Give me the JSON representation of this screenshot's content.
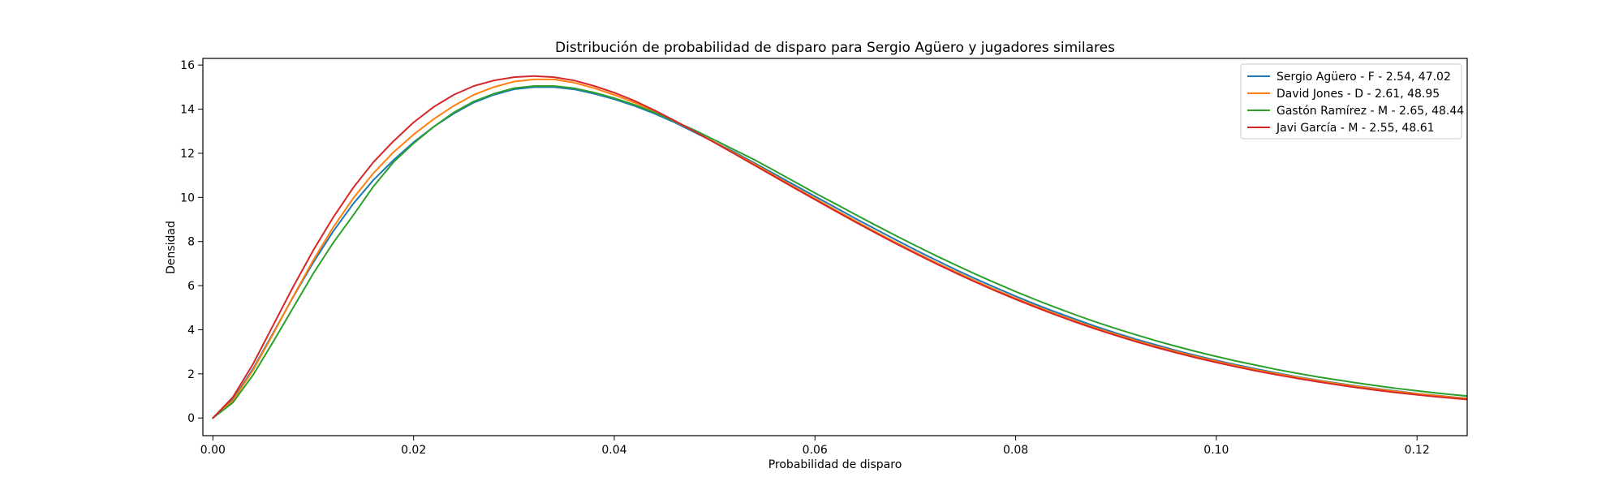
{
  "chart_data": {
    "type": "line",
    "title": "Distribución de probabilidad de disparo para Sergio Agüero y jugadores similares",
    "xlabel": "Probabilidad de disparo",
    "ylabel": "Densidad",
    "xlim": [
      -0.001,
      0.125
    ],
    "ylim": [
      -0.8,
      16.3
    ],
    "xticks": [
      0.0,
      0.02,
      0.04,
      0.06,
      0.08,
      0.1,
      0.12
    ],
    "xtick_labels": [
      "0.00",
      "0.02",
      "0.04",
      "0.06",
      "0.08",
      "0.10",
      "0.12"
    ],
    "yticks": [
      0,
      2,
      4,
      6,
      8,
      10,
      12,
      14,
      16
    ],
    "ytick_labels": [
      "0",
      "2",
      "4",
      "6",
      "8",
      "10",
      "12",
      "14",
      "16"
    ],
    "grid": false,
    "legend_position": "top-right",
    "series": [
      {
        "name": "Sergio Agüero - F - 2.54, 47.02",
        "color": "#1f77b4",
        "alpha": 2.54,
        "beta": 47.02,
        "x": [
          0,
          0.002,
          0.004,
          0.006,
          0.008,
          0.01,
          0.012,
          0.014,
          0.016,
          0.018,
          0.02,
          0.022,
          0.024,
          0.026,
          0.028,
          0.03,
          0.032,
          0.034,
          0.036,
          0.038,
          0.04,
          0.042,
          0.044,
          0.046,
          0.048,
          0.05,
          0.052,
          0.054,
          0.056,
          0.058,
          0.06,
          0.062,
          0.064,
          0.066,
          0.068,
          0.07,
          0.072,
          0.074,
          0.076,
          0.078,
          0.08,
          0.082,
          0.084,
          0.086,
          0.088,
          0.09,
          0.092,
          0.094,
          0.096,
          0.098,
          0.1,
          0.102,
          0.104,
          0.106,
          0.108,
          0.11,
          0.112,
          0.114,
          0.116,
          0.118,
          0.12,
          0.122,
          0.124,
          0.126
        ],
        "y": [
          0,
          0.84,
          2.23,
          3.85,
          5.49,
          7.05,
          8.47,
          9.72,
          10.79,
          11.69,
          12.5,
          13.2,
          13.8,
          14.3,
          14.65,
          14.9,
          15.0,
          15.0,
          14.9,
          14.7,
          14.45,
          14.15,
          13.8,
          13.4,
          12.95,
          12.5,
          12.05,
          11.55,
          11.05,
          10.55,
          10.05,
          9.55,
          9.05,
          8.57,
          8.09,
          7.62,
          7.17,
          6.73,
          6.31,
          5.91,
          5.52,
          5.15,
          4.8,
          4.47,
          4.15,
          3.85,
          3.57,
          3.31,
          3.06,
          2.83,
          2.61,
          2.41,
          2.22,
          2.04,
          1.87,
          1.72,
          1.58,
          1.45,
          1.33,
          1.22,
          1.11,
          1.02,
          0.93,
          0.85
        ]
      },
      {
        "name": "David Jones - D - 2.61, 48.95",
        "color": "#ff7f0e",
        "alpha": 2.61,
        "beta": 48.95,
        "x": [
          0,
          0.002,
          0.004,
          0.006,
          0.008,
          0.01,
          0.012,
          0.014,
          0.016,
          0.018,
          0.02,
          0.022,
          0.024,
          0.026,
          0.028,
          0.03,
          0.032,
          0.034,
          0.036,
          0.038,
          0.04,
          0.042,
          0.044,
          0.046,
          0.048,
          0.05,
          0.052,
          0.054,
          0.056,
          0.058,
          0.06,
          0.062,
          0.064,
          0.066,
          0.068,
          0.07,
          0.072,
          0.074,
          0.076,
          0.078,
          0.08,
          0.082,
          0.084,
          0.086,
          0.088,
          0.09,
          0.092,
          0.094,
          0.096,
          0.098,
          0.1,
          0.102,
          0.104,
          0.106,
          0.108,
          0.11,
          0.112,
          0.114,
          0.116,
          0.118,
          0.12,
          0.122,
          0.124,
          0.126
        ],
        "y": [
          0,
          0.79,
          2.17,
          3.81,
          5.51,
          7.15,
          8.65,
          9.97,
          11.1,
          12.05,
          12.85,
          13.55,
          14.15,
          14.65,
          15.0,
          15.25,
          15.35,
          15.35,
          15.2,
          14.95,
          14.65,
          14.3,
          13.9,
          13.45,
          13.0,
          12.5,
          12.0,
          11.5,
          10.98,
          10.46,
          9.95,
          9.44,
          8.94,
          8.45,
          7.97,
          7.51,
          7.06,
          6.63,
          6.21,
          5.81,
          5.43,
          5.07,
          4.72,
          4.39,
          4.08,
          3.79,
          3.51,
          3.25,
          3.01,
          2.78,
          2.57,
          2.37,
          2.18,
          2.01,
          1.85,
          1.7,
          1.56,
          1.43,
          1.31,
          1.2,
          1.1,
          1.01,
          0.92,
          0.84
        ]
      },
      {
        "name": "Gastón Ramírez - M - 2.65, 48.44",
        "color": "#2ca02c",
        "alpha": 2.65,
        "beta": 48.44,
        "x": [
          0,
          0.002,
          0.004,
          0.006,
          0.008,
          0.01,
          0.012,
          0.014,
          0.016,
          0.018,
          0.02,
          0.022,
          0.024,
          0.026,
          0.028,
          0.03,
          0.032,
          0.034,
          0.036,
          0.038,
          0.04,
          0.042,
          0.044,
          0.046,
          0.048,
          0.05,
          0.052,
          0.054,
          0.056,
          0.058,
          0.06,
          0.062,
          0.064,
          0.066,
          0.068,
          0.07,
          0.072,
          0.074,
          0.076,
          0.078,
          0.08,
          0.082,
          0.084,
          0.086,
          0.088,
          0.09,
          0.092,
          0.094,
          0.096,
          0.098,
          0.1,
          0.102,
          0.104,
          0.106,
          0.108,
          0.11,
          0.112,
          0.114,
          0.116,
          0.118,
          0.12,
          0.122,
          0.124,
          0.126
        ],
        "y": [
          0,
          0.7,
          1.95,
          3.45,
          5.0,
          6.55,
          7.95,
          9.2,
          10.5,
          11.6,
          12.45,
          13.2,
          13.85,
          14.35,
          14.7,
          14.95,
          15.05,
          15.05,
          14.95,
          14.75,
          14.5,
          14.2,
          13.85,
          13.45,
          13.05,
          12.6,
          12.15,
          11.7,
          11.2,
          10.7,
          10.2,
          9.72,
          9.23,
          8.75,
          8.28,
          7.82,
          7.37,
          6.94,
          6.52,
          6.12,
          5.73,
          5.36,
          5.01,
          4.67,
          4.35,
          4.05,
          3.77,
          3.5,
          3.25,
          3.01,
          2.79,
          2.58,
          2.39,
          2.2,
          2.03,
          1.87,
          1.73,
          1.59,
          1.46,
          1.34,
          1.23,
          1.13,
          1.04,
          0.95
        ]
      },
      {
        "name": "Javi García - M - 2.55, 48.61",
        "color": "#d62728",
        "alpha": 2.55,
        "beta": 48.61,
        "x": [
          0,
          0.002,
          0.004,
          0.006,
          0.008,
          0.01,
          0.012,
          0.014,
          0.016,
          0.018,
          0.02,
          0.022,
          0.024,
          0.026,
          0.028,
          0.03,
          0.032,
          0.034,
          0.036,
          0.038,
          0.04,
          0.042,
          0.044,
          0.046,
          0.048,
          0.05,
          0.052,
          0.054,
          0.056,
          0.058,
          0.06,
          0.062,
          0.064,
          0.066,
          0.068,
          0.07,
          0.072,
          0.074,
          0.076,
          0.078,
          0.08,
          0.082,
          0.084,
          0.086,
          0.088,
          0.09,
          0.092,
          0.094,
          0.096,
          0.098,
          0.1,
          0.102,
          0.104,
          0.106,
          0.108,
          0.11,
          0.112,
          0.114,
          0.116,
          0.118,
          0.12,
          0.122,
          0.124,
          0.126
        ],
        "y": [
          0,
          0.95,
          2.45,
          4.2,
          5.95,
          7.6,
          9.1,
          10.45,
          11.6,
          12.55,
          13.4,
          14.1,
          14.65,
          15.05,
          15.3,
          15.45,
          15.5,
          15.45,
          15.3,
          15.05,
          14.75,
          14.38,
          13.95,
          13.48,
          12.99,
          12.48,
          11.97,
          11.45,
          10.93,
          10.41,
          9.9,
          9.39,
          8.89,
          8.4,
          7.92,
          7.46,
          7.01,
          6.58,
          6.16,
          5.76,
          5.38,
          5.02,
          4.67,
          4.34,
          4.03,
          3.74,
          3.46,
          3.2,
          2.96,
          2.73,
          2.52,
          2.32,
          2.13,
          1.96,
          1.8,
          1.65,
          1.51,
          1.38,
          1.26,
          1.15,
          1.05,
          0.96,
          0.88,
          0.8
        ]
      }
    ]
  }
}
